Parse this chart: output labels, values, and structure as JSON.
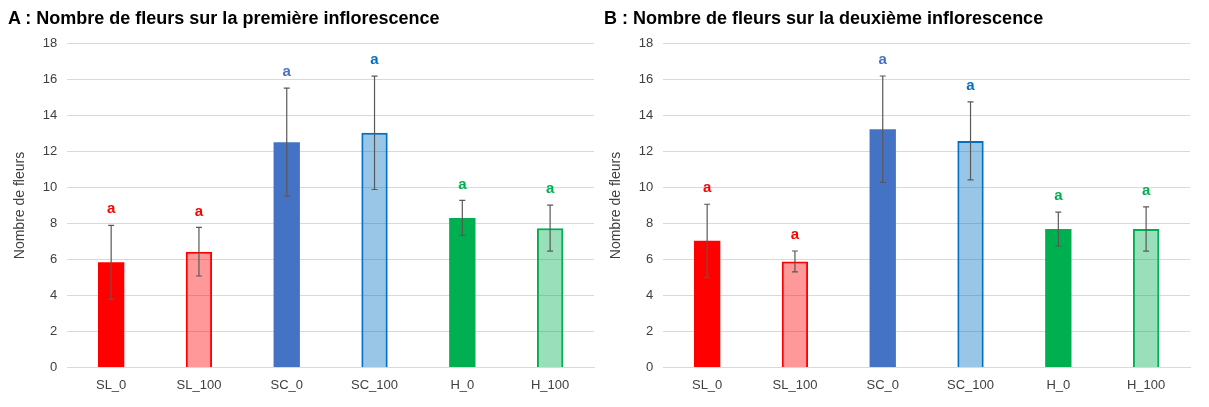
{
  "chart_data": [
    {
      "type": "bar",
      "title": "A : Nombre de fleurs sur la première inflorescence",
      "ylabel": "Nombre de fleurs",
      "categories": [
        "SL_0",
        "SL_100",
        "SC_0",
        "SC_100",
        "H_0",
        "H_100"
      ],
      "values": [
        5.85,
        6.43,
        12.52,
        13.04,
        8.31,
        7.74
      ],
      "errors": [
        2.05,
        1.35,
        3.0,
        3.15,
        0.97,
        1.28
      ],
      "colors": [
        "#ff0000",
        "#ff0000",
        "#4472c4",
        "#0070c0",
        "#00b050",
        "#00b050"
      ],
      "ylim": [
        0,
        18
      ],
      "yticks": [
        0,
        2,
        4,
        6,
        8,
        10,
        12,
        14,
        16,
        18
      ],
      "grid": "y",
      "legend": false,
      "annotations": [
        "a",
        "a",
        "a",
        "a",
        "a",
        "a"
      ]
    },
    {
      "type": "bar",
      "title": "B : Nombre de fleurs sur la deuxième inflorescence",
      "ylabel": "Nombre de fleurs",
      "categories": [
        "SL_0",
        "SL_100",
        "SC_0",
        "SC_100",
        "H_0",
        "H_100"
      ],
      "values": [
        7.04,
        5.89,
        13.24,
        12.59,
        7.69,
        7.69
      ],
      "errors": [
        2.03,
        0.58,
        2.96,
        2.17,
        0.94,
        1.23
      ],
      "colors": [
        "#ff0000",
        "#ff0000",
        "#4472c4",
        "#0070c0",
        "#00b050",
        "#00b050"
      ],
      "ylim": [
        0,
        18
      ],
      "yticks": [
        0,
        2,
        4,
        6,
        8,
        10,
        12,
        14,
        16,
        18
      ],
      "grid": "y",
      "legend": false,
      "annotations": [
        "a",
        "a",
        "a",
        "a",
        "a",
        "a"
      ]
    }
  ]
}
